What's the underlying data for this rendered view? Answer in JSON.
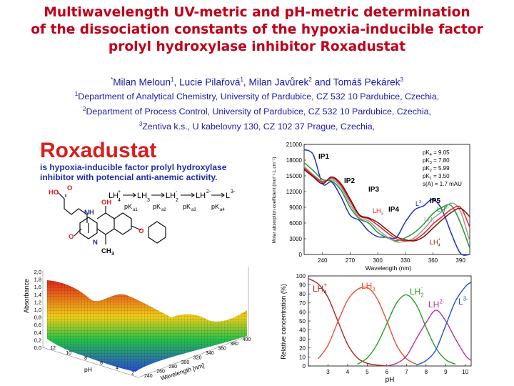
{
  "title": {
    "line1": "Multiwavelength UV-metric and pH-metric determination",
    "line2": "of the dissociation constants of the hypoxia-inducible factor",
    "line3": "prolyl hydroxylase inhibitor Roxadustat"
  },
  "authors": {
    "star": "*",
    "a1": "Milan Meloun",
    "s1": "1",
    "a2": ", Lucie Pilařová",
    "s2": "1",
    "a3": ", Milan Javůrek",
    "s3": "2",
    "a4": " and Tomáš Pekárek",
    "s4": "3"
  },
  "affiliations": [
    {
      "sup": "1",
      "text": "Department of Analytical Chemistry, University of Pardubice, CZ 532 10 Pardubice, Czechia,"
    },
    {
      "sup": "2",
      "text": "Department of Process Control, University of Pardubice, CZ 532 10 Pardubice, Czechia,"
    },
    {
      "sup": "3",
      "text": "Zentiva k.s., U kabelovny 130, CZ 102 37 Prague, Czechia,"
    }
  ],
  "compound_panel": {
    "name": "Roxadustat",
    "desc1": "is hypoxia-inducible factor prolyl hydroxylase",
    "desc2": "inhibitor with potencial anti-anemic activity.",
    "scheme": {
      "species": [
        "LH",
        "LH",
        "LH",
        "LH",
        "L"
      ],
      "charges": [
        "+",
        "",
        "-",
        "2-",
        "3-"
      ],
      "subs": [
        "4",
        "3",
        "2",
        "",
        ""
      ],
      "pk_labels": [
        "pK",
        "pK",
        "pK",
        "pK"
      ],
      "pk_subs": [
        "a1",
        "a2",
        "a3",
        "a4"
      ]
    },
    "atoms": [
      "HO",
      "O",
      "NH",
      "O",
      "OH",
      "N",
      "O",
      "CH",
      "3"
    ]
  },
  "surface_plot": {
    "zlabel": "Absorbance",
    "xlabel": "Wavelength [nm]",
    "ylabel": "pH",
    "zticks": [
      "0,0",
      "0,2",
      "0,4",
      "0,6",
      "0,8",
      "1,0",
      "1,2",
      "1,4",
      "1,6",
      "1,8",
      "2,0"
    ],
    "xticks": [
      "240",
      "260",
      "280",
      "300",
      "320",
      "340",
      "360",
      "380",
      "400"
    ],
    "yticks": [
      "2",
      "4",
      "6",
      "8",
      "10",
      "12"
    ],
    "colors": {
      "low": "#2b4ad6",
      "mid": "#27c24a",
      "high": "#e0241c"
    }
  },
  "chart_data": [
    {
      "type": "line",
      "xlabel": "Wavelength (nm)",
      "ylabel": "Molar absorption coefficient (mol⁻¹.L.cm⁻¹)",
      "xlim": [
        220,
        400
      ],
      "ylim": [
        0,
        21000
      ],
      "xticks": [
        "240",
        "270",
        "300",
        "330",
        "360",
        "390"
      ],
      "yticks": [
        "0",
        "3000",
        "6000",
        "9000",
        "12000",
        "15000",
        "18000",
        "21000"
      ],
      "grid": false,
      "legend_placement": "top-right",
      "annotations": [
        {
          "text": "pK",
          "sub": "4",
          "tail": " = 9.05"
        },
        {
          "text": "pK",
          "sub": "3",
          "tail": " = 7.80"
        },
        {
          "text": "pK",
          "sub": "2",
          "tail": " = 5.99"
        },
        {
          "text": "pK",
          "sub": "1",
          "tail": " = 3.50"
        },
        {
          "text": "s(A) = 1.7 mAU",
          "sub": "",
          "tail": ""
        }
      ],
      "callouts": [
        "IP1",
        "IP2",
        "IP3",
        "IP4",
        "IP5"
      ],
      "series": [
        {
          "name": "L",
          "sup": "3-",
          "sub": "",
          "color": "#1b2fc4",
          "x": [
            220,
            230,
            240,
            250,
            260,
            270,
            280,
            290,
            300,
            310,
            320,
            330,
            340,
            350,
            360,
            370,
            380,
            390,
            400
          ],
          "y": [
            20000,
            19000,
            13500,
            13800,
            11000,
            7500,
            6500,
            4500,
            3400,
            3300,
            3200,
            6200,
            8500,
            9300,
            10500,
            8500,
            4000,
            200,
            0
          ]
        },
        {
          "name": "LH",
          "sup": "2-",
          "sub": "",
          "color": "#1d9a2a",
          "x": [
            220,
            230,
            240,
            250,
            260,
            270,
            280,
            290,
            300,
            310,
            320,
            330,
            340,
            350,
            360,
            370,
            380,
            390,
            400
          ],
          "y": [
            17500,
            16000,
            14300,
            14000,
            12300,
            9000,
            6800,
            6000,
            4200,
            3200,
            2600,
            3200,
            4200,
            5800,
            7800,
            9000,
            9300,
            6000,
            1200
          ]
        },
        {
          "name": "LH",
          "sup": "-",
          "sub": "2",
          "color": "#9a9a9a",
          "x": [
            220,
            230,
            240,
            250,
            260,
            270,
            280,
            290,
            300,
            310,
            320,
            330,
            340,
            350,
            360,
            370,
            380,
            390,
            400
          ],
          "y": [
            16800,
            15200,
            14000,
            14300,
            12800,
            9600,
            7000,
            6400,
            4800,
            3400,
            2400,
            2500,
            3200,
            4800,
            6800,
            8200,
            9800,
            8200,
            2500
          ]
        },
        {
          "name": "LH",
          "sup": "",
          "sub": "3",
          "color": "#e02020",
          "x": [
            220,
            230,
            240,
            250,
            260,
            270,
            280,
            290,
            300,
            310,
            320,
            330,
            340,
            350,
            360,
            370,
            380,
            390,
            400
          ],
          "y": [
            16500,
            15000,
            13800,
            14600,
            13200,
            10200,
            7400,
            6800,
            5600,
            4200,
            3000,
            2600,
            2800,
            4000,
            5800,
            7200,
            8600,
            9000,
            5200
          ]
        },
        {
          "name": "LH",
          "sup": "+",
          "sub": "4",
          "color": "#7a1010",
          "x": [
            220,
            230,
            240,
            250,
            260,
            270,
            280,
            290,
            300,
            310,
            320,
            330,
            340,
            350,
            360,
            370,
            380,
            390,
            400
          ],
          "y": [
            16200,
            14800,
            13500,
            14800,
            13500,
            10600,
            7600,
            7000,
            6100,
            4700,
            3400,
            2800,
            2600,
            3400,
            5000,
            6600,
            8000,
            8800,
            7200
          ]
        }
      ]
    },
    {
      "type": "line",
      "xlabel": "pH",
      "ylabel": "Relative concentration (%)",
      "xlim": [
        2,
        10.3
      ],
      "ylim": [
        0,
        100
      ],
      "xticks": [
        "3",
        "4",
        "5",
        "6",
        "7",
        "8",
        "9",
        "10"
      ],
      "yticks": [
        "0",
        "10",
        "20",
        "30",
        "40",
        "50",
        "60",
        "70",
        "80",
        "90",
        "100"
      ],
      "grid": false,
      "series": [
        {
          "name": "LH",
          "sup": "+",
          "sub": "4",
          "color": "#b12020",
          "x": [
            2,
            2.5,
            3,
            3.5,
            4,
            4.5,
            5,
            5.5,
            6
          ],
          "y": [
            97,
            91,
            76,
            50,
            24,
            9,
            3,
            1,
            0
          ]
        },
        {
          "name": "LH",
          "sup": "",
          "sub": "3",
          "color": "#f05030",
          "x": [
            2.5,
            3,
            3.5,
            4,
            4.5,
            5,
            5.5,
            6,
            6.5,
            7,
            7.5
          ],
          "y": [
            8,
            23,
            49,
            73,
            85,
            87,
            75,
            50,
            23,
            8,
            2
          ]
        },
        {
          "name": "LH",
          "sup": "-",
          "sub": "2",
          "color": "#22a02a",
          "x": [
            4.5,
            5,
            5.5,
            6,
            6.5,
            7,
            7.5,
            8,
            8.5,
            9,
            9.5
          ],
          "y": [
            2,
            9,
            24,
            47,
            70,
            79,
            68,
            43,
            20,
            7,
            2
          ]
        },
        {
          "name": "LH",
          "sup": "2-",
          "sub": "",
          "color": "#b030a0",
          "x": [
            6,
            6.5,
            7,
            7.5,
            8,
            8.5,
            9,
            9.5,
            10,
            10.3
          ],
          "y": [
            0,
            3,
            11,
            30,
            48,
            62,
            50,
            30,
            12,
            6
          ]
        },
        {
          "name": "L",
          "sup": "3-",
          "sub": "",
          "color": "#2050d0",
          "x": [
            7.5,
            8,
            8.5,
            9,
            9.5,
            10,
            10.3
          ],
          "y": [
            1,
            6,
            18,
            45,
            72,
            88,
            93
          ]
        }
      ]
    }
  ]
}
